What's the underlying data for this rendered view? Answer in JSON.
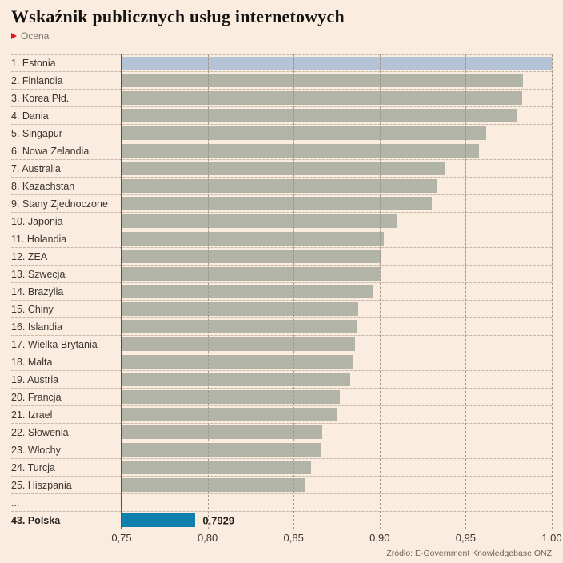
{
  "title": "Wskaźnik publicznych usług internetowych",
  "subtitle": "Ocena",
  "source": "Źródło: E-Government Knowledgebase ONZ",
  "colors": {
    "background": "#faecdf",
    "bar_default": "#b2b4a8",
    "bar_top": "#b5c3d7",
    "bar_poland": "#0f81ac",
    "accent_red": "#e2131f",
    "axis_line": "#55514a",
    "gridline": "#a2988a"
  },
  "chart_data": {
    "type": "bar",
    "orientation": "horizontal",
    "title": "Wskaźnik publicznych usług internetowych",
    "xlabel": "Ocena",
    "ylabel": "",
    "xlim": [
      0.75,
      1.0
    ],
    "grid": true,
    "x_ticks": [
      "0,75",
      "0,80",
      "0,85",
      "0,90",
      "0,95",
      "1,00"
    ],
    "rows": [
      {
        "label": "1. Estonia",
        "value": 1.0,
        "color_key": "bar_top"
      },
      {
        "label": "2. Finlandia",
        "value": 0.9833,
        "color_key": "bar_default"
      },
      {
        "label": "3. Korea Płd.",
        "value": 0.9826,
        "color_key": "bar_default"
      },
      {
        "label": "4. Dania",
        "value": 0.9797,
        "color_key": "bar_default"
      },
      {
        "label": "5. Singapur",
        "value": 0.962,
        "color_key": "bar_default"
      },
      {
        "label": "6. Nowa Zelandia",
        "value": 0.9579,
        "color_key": "bar_default"
      },
      {
        "label": "7. Australia",
        "value": 0.938,
        "color_key": "bar_default"
      },
      {
        "label": "8. Kazachstan",
        "value": 0.9336,
        "color_key": "bar_default"
      },
      {
        "label": "9. Stany Zjednoczone",
        "value": 0.9304,
        "color_key": "bar_default"
      },
      {
        "label": "10. Japonia",
        "value": 0.9099,
        "color_key": "bar_default"
      },
      {
        "label": "11. Holandia",
        "value": 0.9026,
        "color_key": "bar_default"
      },
      {
        "label": "12. ZEA",
        "value": 0.901,
        "color_key": "bar_default"
      },
      {
        "label": "13. Szwecja",
        "value": 0.9002,
        "color_key": "bar_default"
      },
      {
        "label": "14. Brazylia",
        "value": 0.8963,
        "color_key": "bar_default"
      },
      {
        "label": "15. Chiny",
        "value": 0.8876,
        "color_key": "bar_default"
      },
      {
        "label": "16. Islandia",
        "value": 0.8868,
        "color_key": "bar_default"
      },
      {
        "label": "17. Wielka Brytania",
        "value": 0.8859,
        "color_key": "bar_default"
      },
      {
        "label": "18. Malta",
        "value": 0.8847,
        "color_key": "bar_default"
      },
      {
        "label": "19. Austria",
        "value": 0.883,
        "color_key": "bar_default"
      },
      {
        "label": "20. Francja",
        "value": 0.877,
        "color_key": "bar_default"
      },
      {
        "label": "21. Izrael",
        "value": 0.8748,
        "color_key": "bar_default"
      },
      {
        "label": "22. Słowenia",
        "value": 0.8665,
        "color_key": "bar_default"
      },
      {
        "label": "23. Włochy",
        "value": 0.8659,
        "color_key": "bar_default"
      },
      {
        "label": "24. Turcja",
        "value": 0.8601,
        "color_key": "bar_default"
      },
      {
        "label": "25. Hiszpania",
        "value": 0.8562,
        "color_key": "bar_default"
      },
      {
        "label": "...",
        "value": null,
        "color_key": null
      },
      {
        "label": "43. Polska",
        "value": 0.7929,
        "color_key": "bar_poland",
        "bold": true,
        "display_value": "0,7929"
      }
    ]
  }
}
